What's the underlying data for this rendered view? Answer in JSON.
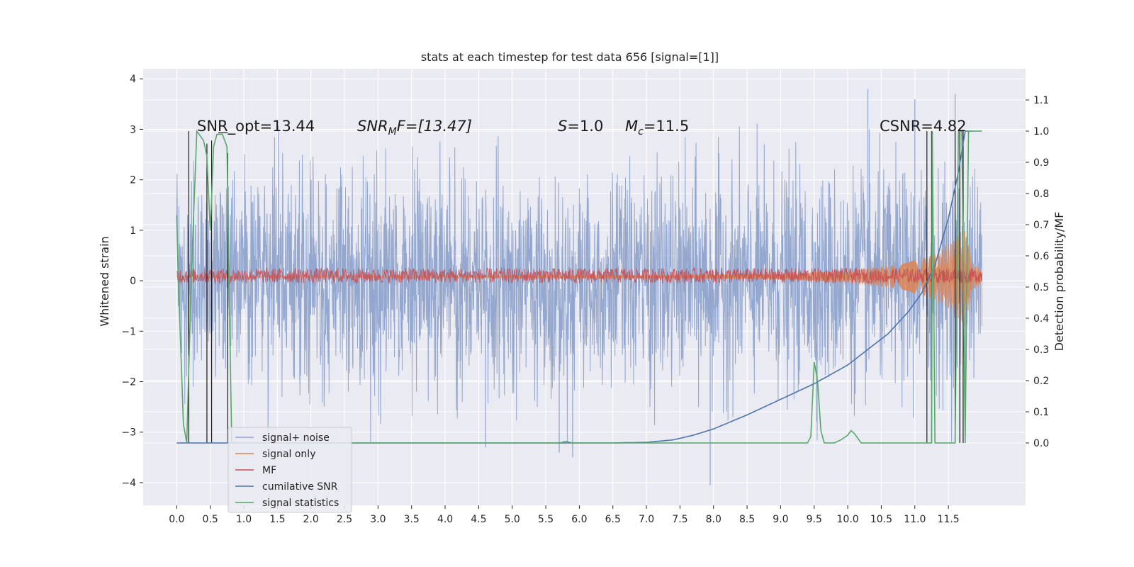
{
  "chart_data": {
    "type": "line",
    "title": "stats at each timestep for test data 656 [signal=[1]]",
    "ylabel": "Whitened strain",
    "y2label": "Detection probability/MF",
    "xlim": [
      -0.5,
      12.65
    ],
    "ylim": [
      -4.45,
      4.2
    ],
    "y2lim": [
      -0.2,
      1.2
    ],
    "xticks": [
      "0.0",
      "0.5",
      "1.0",
      "1.5",
      "2.0",
      "2.5",
      "3.0",
      "3.5",
      "4.0",
      "4.5",
      "5.0",
      "5.5",
      "6.0",
      "6.5",
      "7.0",
      "7.5",
      "8.0",
      "8.5",
      "9.0",
      "9.5",
      "10.0",
      "10.5",
      "11.0",
      "11.5"
    ],
    "yticks": [
      "4",
      "3",
      "2",
      "1",
      "0",
      "−1",
      "−2",
      "−3",
      "−4"
    ],
    "y2ticks": [
      "1.1",
      "1.0",
      "0.9",
      "0.8",
      "0.7",
      "0.6",
      "0.5",
      "0.4",
      "0.3",
      "0.2",
      "0.1",
      "0.0"
    ],
    "grid": true,
    "legend_placement": "lower-left",
    "annotations": {
      "snr_opt": "SNR_opt=13.44",
      "snr_mf_sym": "SNR",
      "snr_mf_sub": "M",
      "snr_mf_rest": "F=[13.47]",
      "s_sym": "S",
      "s_rest": "=1.0",
      "mc_sym": "M",
      "mc_sub": "c",
      "mc_rest": "=11.5",
      "csnr": "CSNR=4.82"
    },
    "series": [
      {
        "name": "signal+ noise",
        "color": "#8fa3cc",
        "kind": "noise",
        "x_range": [
          0.0,
          12.0
        ],
        "amplitude_range": [
          -3.2,
          3.2
        ],
        "outliers": [
          [
            4.6,
            -3.3
          ],
          [
            5.7,
            -3.4
          ],
          [
            5.9,
            -3.5
          ],
          [
            7.95,
            -4.05
          ],
          [
            11.0,
            3.6
          ],
          [
            11.6,
            3.7
          ],
          [
            10.3,
            3.8
          ]
        ]
      },
      {
        "name": "signal only",
        "color": "#dd8452",
        "kind": "chirp",
        "x_range": [
          0.0,
          12.0
        ],
        "envelope": [
          [
            0,
            0.02
          ],
          [
            7.5,
            0.03
          ],
          [
            9,
            0.06
          ],
          [
            10,
            0.12
          ],
          [
            10.8,
            0.25
          ],
          [
            11.3,
            0.45
          ],
          [
            11.6,
            0.75
          ],
          [
            11.75,
            1.0
          ],
          [
            11.85,
            0.3
          ],
          [
            12.0,
            0.1
          ]
        ]
      },
      {
        "name": "MF",
        "color": "#c44e52",
        "kind": "band",
        "x_range": [
          0.0,
          12.0
        ],
        "y_center": 0.1,
        "amplitude": 0.15
      },
      {
        "name": "cumilative SNR",
        "color": "#4c72b0",
        "kind": "line",
        "axis": "y2",
        "x": [
          0.0,
          6.5,
          7.0,
          7.4,
          7.7,
          8.0,
          8.5,
          9.0,
          9.5,
          10.0,
          10.3,
          10.6,
          10.9,
          11.1,
          11.3,
          11.5,
          11.65,
          11.75,
          11.85
        ],
        "y": [
          0.0,
          0.0,
          0.002,
          0.01,
          0.025,
          0.045,
          0.09,
          0.14,
          0.19,
          0.25,
          0.3,
          0.35,
          0.42,
          0.48,
          0.57,
          0.72,
          0.87,
          1.0,
          1.0
        ]
      },
      {
        "name": "signal statistics",
        "color": "#55a868",
        "kind": "line",
        "axis": "y2",
        "x": [
          0.0,
          0.02,
          0.1,
          0.15,
          0.22,
          0.3,
          0.4,
          0.45,
          0.5,
          0.55,
          0.6,
          0.68,
          0.75,
          0.78,
          0.82,
          1.0,
          5.7,
          5.8,
          5.9,
          9.4,
          9.45,
          9.5,
          9.55,
          9.6,
          9.65,
          9.8,
          9.9,
          10.0,
          10.05,
          10.1,
          10.2,
          11.25,
          11.26,
          11.3,
          11.4,
          11.6,
          11.65,
          11.7,
          11.75,
          11.8,
          11.85,
          12.0
        ],
        "y": [
          0.73,
          0.55,
          0.06,
          0.0,
          0.55,
          1.0,
          0.97,
          0.92,
          0.68,
          0.95,
          0.99,
          0.99,
          0.95,
          0.5,
          0.0,
          0.0,
          0.0,
          0.005,
          0.0,
          0.0,
          0.02,
          0.26,
          0.2,
          0.04,
          0.0,
          0.0,
          0.01,
          0.025,
          0.04,
          0.03,
          0.0,
          0.0,
          1.0,
          0.0,
          0.0,
          0.0,
          1.0,
          1.0,
          0.0,
          1.0,
          1.0,
          1.0
        ]
      }
    ],
    "black_spikes": [
      {
        "x": 0.18,
        "y1": 0.0,
        "y2": 1.0
      },
      {
        "x": 0.45,
        "y1": 0.0,
        "y2": 0.96
      },
      {
        "x": 0.52,
        "y1": 0.0,
        "y2": 0.97
      },
      {
        "x": 0.62,
        "y1": 0.995,
        "y2": 0.995,
        "x2": 0.76
      },
      {
        "x": 0.76,
        "y1": 0.0,
        "y2": 0.93
      },
      {
        "x": 11.18,
        "y1": 0.0,
        "y2": 1.0
      },
      {
        "x": 11.25,
        "y1": 0.0,
        "y2": 1.0
      },
      {
        "x": 11.6,
        "y1": 0.0,
        "y2": 1.0
      },
      {
        "x": 11.67,
        "y1": 0.0,
        "y2": 1.0
      },
      {
        "x": 11.72,
        "y1": 0.0,
        "y2": 1.0
      }
    ]
  }
}
